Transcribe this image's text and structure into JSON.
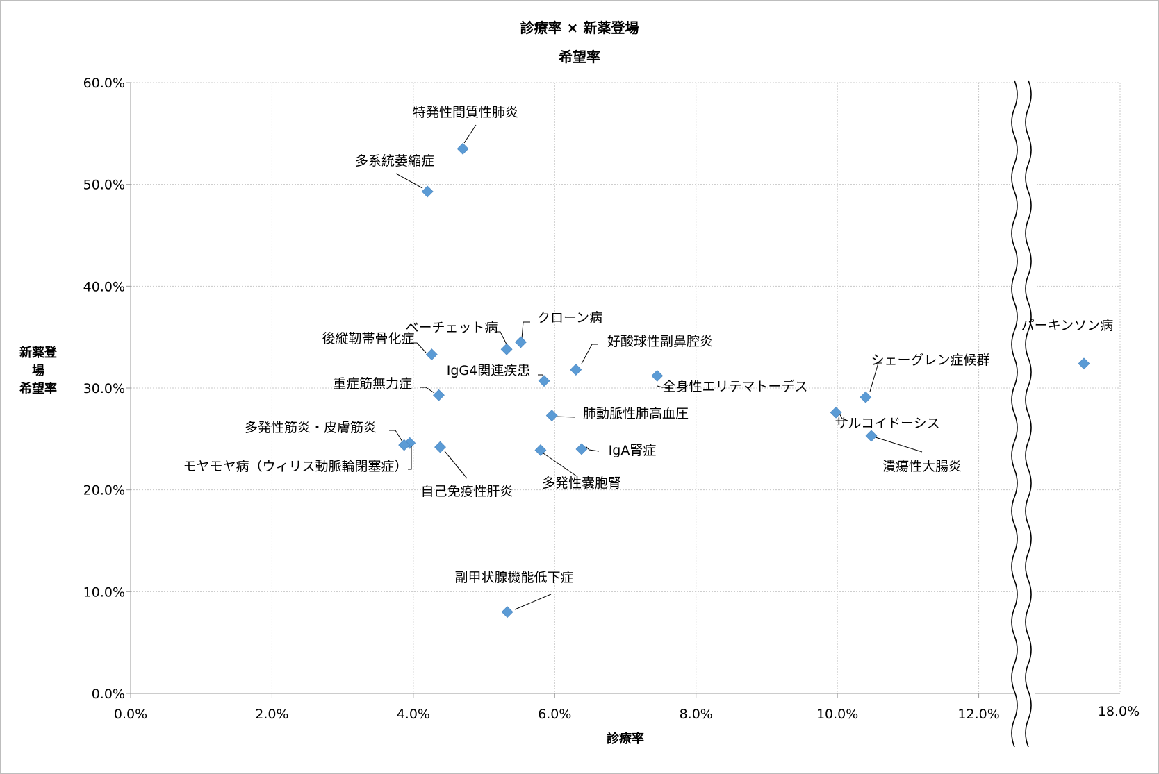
{
  "chart_data": {
    "type": "scatter",
    "title": "診療率 × 新薬登場",
    "subtitle": "希望率",
    "xlabel": "診療率",
    "ylabel": [
      "新薬登場",
      "希望率"
    ],
    "xlim": [
      0,
      14
    ],
    "ylim": [
      0,
      60
    ],
    "x_ticks": [
      "0.0%",
      "2.0%",
      "4.0%",
      "6.0%",
      "8.0%",
      "10.0%",
      "12.0%"
    ],
    "x_break_tick": "18.0%",
    "y_ticks": [
      "0.0%",
      "10.0%",
      "20.0%",
      "30.0%",
      "40.0%",
      "50.0%",
      "60.0%"
    ],
    "axis_break": "between 12.0% and 18.0%",
    "grid": true,
    "marker_color": "#5b9bd5",
    "points": [
      {
        "label": "特発性間質性肺炎",
        "x": 4.7,
        "y": 53.5
      },
      {
        "label": "多系統萎縮症",
        "x": 4.2,
        "y": 49.3
      },
      {
        "label": "クローン病",
        "x": 5.52,
        "y": 34.5
      },
      {
        "label": "ベーチェット病",
        "x": 5.32,
        "y": 33.8
      },
      {
        "label": "後縦靭帯骨化症",
        "x": 4.26,
        "y": 33.3
      },
      {
        "label": "好酸球性副鼻腔炎",
        "x": 6.3,
        "y": 31.8
      },
      {
        "label": "IgG4関連疾患",
        "x": 5.85,
        "y": 30.7
      },
      {
        "label": "全身性エリテマトーデス",
        "x": 7.45,
        "y": 31.2
      },
      {
        "label": "重症筋無力症",
        "x": 4.36,
        "y": 29.3
      },
      {
        "label": "肺動脈性肺高血圧",
        "x": 5.96,
        "y": 27.3
      },
      {
        "label": "多発性筋炎・皮膚筋炎",
        "x": 3.95,
        "y": 24.6
      },
      {
        "label": "モヤモヤ病（ウィリス動脈輪閉塞症）",
        "x": 3.87,
        "y": 24.4
      },
      {
        "label": "自己免疫性肝炎",
        "x": 4.38,
        "y": 24.2
      },
      {
        "label": "多発性嚢胞腎",
        "x": 5.8,
        "y": 23.9
      },
      {
        "label": "IgA腎症",
        "x": 6.38,
        "y": 24.0
      },
      {
        "label": "副甲状腺機能低下症",
        "x": 5.33,
        "y": 8.0
      },
      {
        "label": "シェーグレン症候群",
        "x": 10.4,
        "y": 29.1
      },
      {
        "label": "サルコイドーシス",
        "x": 9.98,
        "y": 27.6
      },
      {
        "label": "潰瘍性大腸炎",
        "x": 10.48,
        "y": 25.3
      },
      {
        "label": "パーキンソン病",
        "x": 17.45,
        "y": 32.4
      }
    ]
  }
}
